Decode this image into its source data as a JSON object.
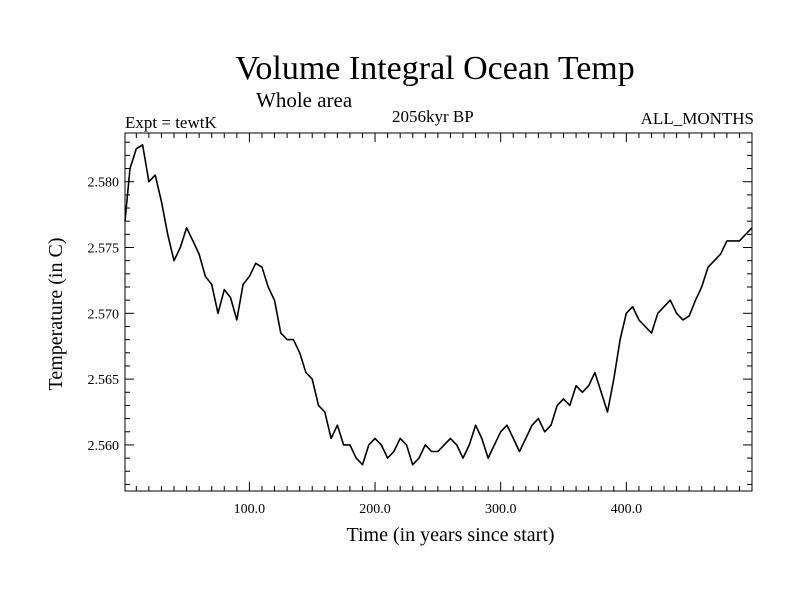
{
  "chart_data": {
    "type": "line",
    "title": "Volume Integral Ocean Temp",
    "subtitle": "Whole area",
    "experiment": "Expt = tewtK",
    "date": "2056kyr BP",
    "period": "ALL_MONTHS",
    "xlabel": "Time (in years since start)",
    "ylabel": "Temperature (in C)",
    "xlim": [
      1,
      500
    ],
    "ylim": [
      2.5565,
      2.5837
    ],
    "xticks": [
      100,
      200,
      300,
      400
    ],
    "xtick_labels": [
      "100.0",
      "200.0",
      "300.0",
      "400.0"
    ],
    "yticks": [
      2.56,
      2.565,
      2.57,
      2.575,
      2.58
    ],
    "ytick_labels": [
      "2.560",
      "2.565",
      "2.570",
      "2.575",
      "2.580"
    ],
    "grid": false,
    "series": [
      {
        "name": "Volume integral ocean temperature",
        "x": [
          1,
          5,
          10,
          15,
          20,
          25,
          30,
          35,
          40,
          45,
          50,
          55,
          60,
          65,
          70,
          75,
          80,
          85,
          90,
          95,
          100,
          105,
          110,
          115,
          120,
          125,
          130,
          135,
          140,
          145,
          150,
          155,
          160,
          165,
          170,
          175,
          180,
          185,
          190,
          195,
          200,
          205,
          210,
          215,
          220,
          225,
          230,
          235,
          240,
          245,
          250,
          255,
          260,
          265,
          270,
          275,
          280,
          285,
          290,
          295,
          300,
          305,
          310,
          315,
          320,
          325,
          330,
          335,
          340,
          345,
          350,
          355,
          360,
          365,
          370,
          375,
          380,
          385,
          390,
          395,
          400,
          405,
          410,
          415,
          420,
          425,
          430,
          435,
          440,
          445,
          450,
          455,
          460,
          465,
          470,
          475,
          480,
          485,
          490,
          495,
          500
        ],
        "values": [
          2.577,
          2.581,
          2.5825,
          2.5828,
          2.58,
          2.5805,
          2.5785,
          2.576,
          2.574,
          2.575,
          2.5765,
          2.5755,
          2.5745,
          2.5728,
          2.5722,
          2.57,
          2.5718,
          2.5712,
          2.5695,
          2.5722,
          2.5728,
          2.5738,
          2.5735,
          2.572,
          2.571,
          2.5685,
          2.568,
          2.568,
          2.567,
          2.5655,
          2.565,
          2.563,
          2.5625,
          2.5605,
          2.5615,
          2.56,
          2.56,
          2.559,
          2.5585,
          2.56,
          2.5605,
          2.56,
          2.559,
          2.5595,
          2.5605,
          2.56,
          2.5585,
          2.559,
          2.56,
          2.5595,
          2.5595,
          2.56,
          2.5605,
          2.56,
          2.559,
          2.56,
          2.5615,
          2.5605,
          2.559,
          2.56,
          2.561,
          2.5615,
          2.5605,
          2.5595,
          2.5605,
          2.5615,
          2.562,
          2.561,
          2.5615,
          2.563,
          2.5635,
          2.563,
          2.5645,
          2.564,
          2.5645,
          2.5655,
          2.564,
          2.5625,
          2.565,
          2.568,
          2.57,
          2.5705,
          2.5695,
          2.569,
          2.5685,
          2.57,
          2.5705,
          2.571,
          2.57,
          2.5695,
          2.5698,
          2.571,
          2.572,
          2.5735,
          2.574,
          2.5745,
          2.5755,
          2.5755,
          2.5755,
          2.576,
          2.5765
        ]
      }
    ]
  }
}
